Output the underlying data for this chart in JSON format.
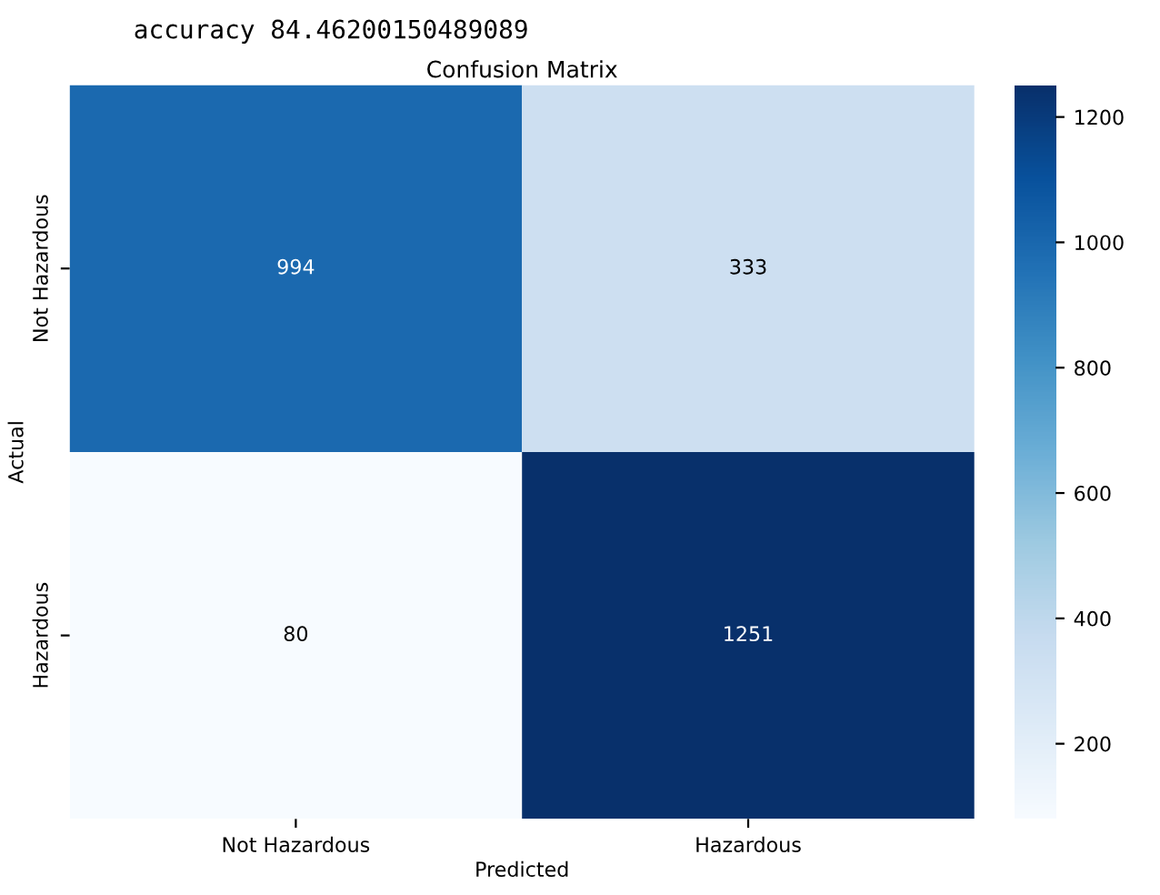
{
  "chart_data": {
    "type": "heatmap",
    "title": "Confusion Matrix",
    "xlabel": "Predicted",
    "ylabel": "Actual",
    "annotations": [
      "accuracy 84.46200150489089"
    ],
    "categories": [
      "Not Hazardous",
      "Hazardous"
    ],
    "y_categories": [
      "Not Hazardous",
      "Hazardous"
    ],
    "cells": [
      [
        994,
        333
      ],
      [
        80,
        1251
      ]
    ],
    "data_labels": true,
    "clim": [
      80,
      1251
    ],
    "cticks": [
      200,
      400,
      600,
      800,
      1000,
      1200
    ]
  }
}
